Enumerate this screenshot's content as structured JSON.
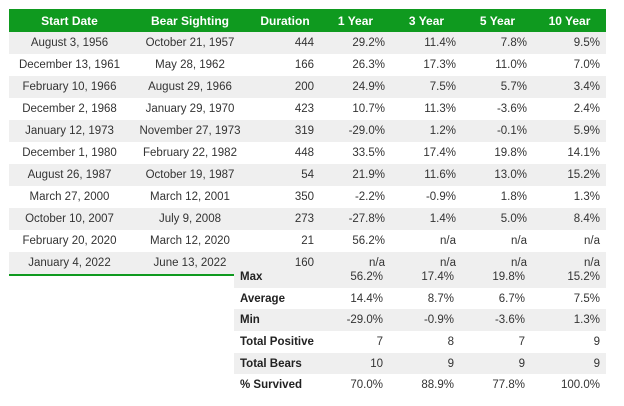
{
  "headers": [
    "Start Date",
    "Bear Sighting",
    "Duration",
    "1 Year",
    "3 Year",
    "5 Year",
    "10 Year"
  ],
  "rows": [
    [
      "August 3, 1956",
      "October 21, 1957",
      "444",
      "29.2%",
      "11.4%",
      "7.8%",
      "9.5%"
    ],
    [
      "December 13, 1961",
      "May 28, 1962",
      "166",
      "26.3%",
      "17.3%",
      "11.0%",
      "7.0%"
    ],
    [
      "February 10, 1966",
      "August 29, 1966",
      "200",
      "24.9%",
      "7.5%",
      "5.7%",
      "3.4%"
    ],
    [
      "December 2, 1968",
      "January 29, 1970",
      "423",
      "10.7%",
      "11.3%",
      "-3.6%",
      "2.4%"
    ],
    [
      "January 12, 1973",
      "November 27, 1973",
      "319",
      "-29.0%",
      "1.2%",
      "-0.1%",
      "5.9%"
    ],
    [
      "December 1, 1980",
      "February 22, 1982",
      "448",
      "33.5%",
      "17.4%",
      "19.8%",
      "14.1%"
    ],
    [
      "August 26, 1987",
      "October 19, 1987",
      "54",
      "21.9%",
      "11.6%",
      "13.0%",
      "15.2%"
    ],
    [
      "March 27, 2000",
      "March 12, 2001",
      "350",
      "-2.2%",
      "-0.9%",
      "1.8%",
      "1.3%"
    ],
    [
      "October 10, 2007",
      "July 9, 2008",
      "273",
      "-27.8%",
      "1.4%",
      "5.0%",
      "8.4%"
    ],
    [
      "February 20, 2020",
      "March 12, 2020",
      "21",
      "56.2%",
      "n/a",
      "n/a",
      "n/a"
    ],
    [
      "January 4, 2022",
      "June 13, 2022",
      "160",
      "n/a",
      "n/a",
      "n/a",
      "n/a"
    ]
  ],
  "summary": [
    [
      "Max",
      "56.2%",
      "17.4%",
      "19.8%",
      "15.2%"
    ],
    [
      "Average",
      "14.4%",
      "8.7%",
      "6.7%",
      "7.5%"
    ],
    [
      "Min",
      "-29.0%",
      "-0.9%",
      "-3.6%",
      "1.3%"
    ],
    [
      "Total Positive",
      "7",
      "8",
      "7",
      "9"
    ],
    [
      "Total Bears",
      "10",
      "9",
      "9",
      "9"
    ],
    [
      "% Survived",
      "70.0%",
      "88.9%",
      "77.8%",
      "100.0%"
    ]
  ],
  "colors": {
    "header_bg": "#0f9a1f",
    "header_text": "#ffffff",
    "stripe": "#efefef",
    "rule": "#0f9a1f"
  }
}
